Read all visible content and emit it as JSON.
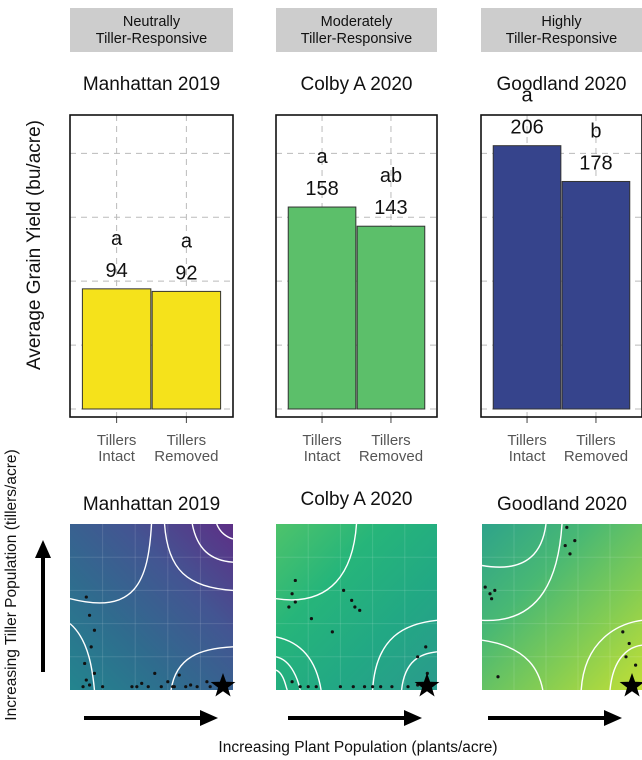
{
  "figure": {
    "y_axis_label_top": "Average Grain Yield (bu/acre)",
    "y_axis_label_bottom": "Increasing Tiller Population (tillers/acre)",
    "x_axis_label_bottom": "Increasing Plant Population (plants/acre)"
  },
  "colors": {
    "yellow": "#f5e21b",
    "green": "#5cbf6a",
    "navy": "#36448c",
    "grid": "#bbbbbb",
    "header_bg": "#cdcdcd"
  },
  "chart_data": [
    {
      "type": "bar",
      "category_header": "Neutrally\nTiller-Responsive",
      "title": "Manhattan 2019",
      "ylabel": "Average Grain Yield (bu/acre)",
      "categories": [
        "Tillers\nIntact",
        "Tillers\nRemoved"
      ],
      "values": [
        94,
        92
      ],
      "value_labels": [
        "94",
        "92"
      ],
      "letters": [
        "a",
        "a"
      ],
      "color": "#f5e21b",
      "ylim": [
        0,
        230
      ],
      "grid": true
    },
    {
      "type": "bar",
      "category_header": "Moderately\nTiller-Responsive",
      "title": "Colby A 2020",
      "categories": [
        "Tillers\nIntact",
        "Tillers\nRemoved"
      ],
      "values": [
        158,
        143
      ],
      "value_labels": [
        "158",
        "143"
      ],
      "letters": [
        "a",
        "ab"
      ],
      "color": "#5cbf6a",
      "ylim": [
        0,
        230
      ],
      "grid": true
    },
    {
      "type": "bar",
      "category_header": "Highly\nTiller-Responsive",
      "title": "Goodland 2020",
      "categories": [
        "Tillers\nIntact",
        "Tillers\nRemoved"
      ],
      "values": [
        206,
        178
      ],
      "value_labels": [
        "206",
        "178"
      ],
      "letters": [
        "a",
        "b"
      ],
      "color": "#36448c",
      "ylim": [
        0,
        230
      ],
      "grid": true
    },
    {
      "type": "heatmap",
      "title": "Manhattan 2019",
      "xlabel": "Increasing Plant Population (plants/acre)",
      "ylabel": "Increasing Tiller Population (tillers/acre)",
      "gradient": [
        "#5d2f86",
        "#435592",
        "#2f6c8e",
        "#23858e"
      ],
      "points": [
        [
          0.1,
          0.56
        ],
        [
          0.12,
          0.45
        ],
        [
          0.15,
          0.36
        ],
        [
          0.13,
          0.26
        ],
        [
          0.09,
          0.16
        ],
        [
          0.1,
          0.06
        ],
        [
          0.12,
          0.03
        ],
        [
          0.15,
          0.1
        ],
        [
          0.08,
          0.02
        ],
        [
          0.2,
          0.02
        ],
        [
          0.38,
          0.02
        ],
        [
          0.44,
          0.04
        ],
        [
          0.48,
          0.02
        ],
        [
          0.52,
          0.1
        ],
        [
          0.56,
          0.02
        ],
        [
          0.6,
          0.05
        ],
        [
          0.63,
          0.02
        ],
        [
          0.67,
          0.09
        ],
        [
          0.71,
          0.02
        ],
        [
          0.74,
          0.03
        ],
        [
          0.78,
          0.02
        ],
        [
          0.84,
          0.05
        ],
        [
          0.86,
          0.02
        ],
        [
          0.64,
          0.02
        ],
        [
          0.41,
          0.02
        ]
      ]
    },
    {
      "type": "heatmap",
      "title": "Colby A 2020",
      "gradient": [
        "#2b9a8c",
        "#22a884",
        "#26b57a",
        "#4ec36b"
      ],
      "points": [
        [
          0.12,
          0.66
        ],
        [
          0.1,
          0.58
        ],
        [
          0.08,
          0.5
        ],
        [
          0.12,
          0.53
        ],
        [
          0.42,
          0.6
        ],
        [
          0.47,
          0.54
        ],
        [
          0.52,
          0.48
        ],
        [
          0.49,
          0.5
        ],
        [
          0.1,
          0.05
        ],
        [
          0.15,
          0.02
        ],
        [
          0.2,
          0.02
        ],
        [
          0.25,
          0.02
        ],
        [
          0.4,
          0.02
        ],
        [
          0.48,
          0.02
        ],
        [
          0.55,
          0.02
        ],
        [
          0.65,
          0.02
        ],
        [
          0.72,
          0.02
        ],
        [
          0.82,
          0.02
        ],
        [
          0.88,
          0.03
        ],
        [
          0.94,
          0.1
        ],
        [
          0.88,
          0.2
        ],
        [
          0.93,
          0.26
        ],
        [
          0.22,
          0.43
        ],
        [
          0.35,
          0.35
        ],
        [
          0.6,
          0.02
        ]
      ]
    },
    {
      "type": "heatmap",
      "title": "Goodland 2020",
      "gradient": [
        "#2ea38a",
        "#48b874",
        "#82cc54",
        "#c2df35"
      ],
      "points": [
        [
          0.53,
          0.98
        ],
        [
          0.58,
          0.9
        ],
        [
          0.55,
          0.82
        ],
        [
          0.52,
          0.87
        ],
        [
          0.02,
          0.62
        ],
        [
          0.05,
          0.58
        ],
        [
          0.08,
          0.6
        ],
        [
          0.06,
          0.55
        ],
        [
          0.88,
          0.35
        ],
        [
          0.92,
          0.28
        ],
        [
          0.9,
          0.2
        ],
        [
          0.96,
          0.15
        ],
        [
          0.1,
          0.08
        ]
      ]
    }
  ]
}
